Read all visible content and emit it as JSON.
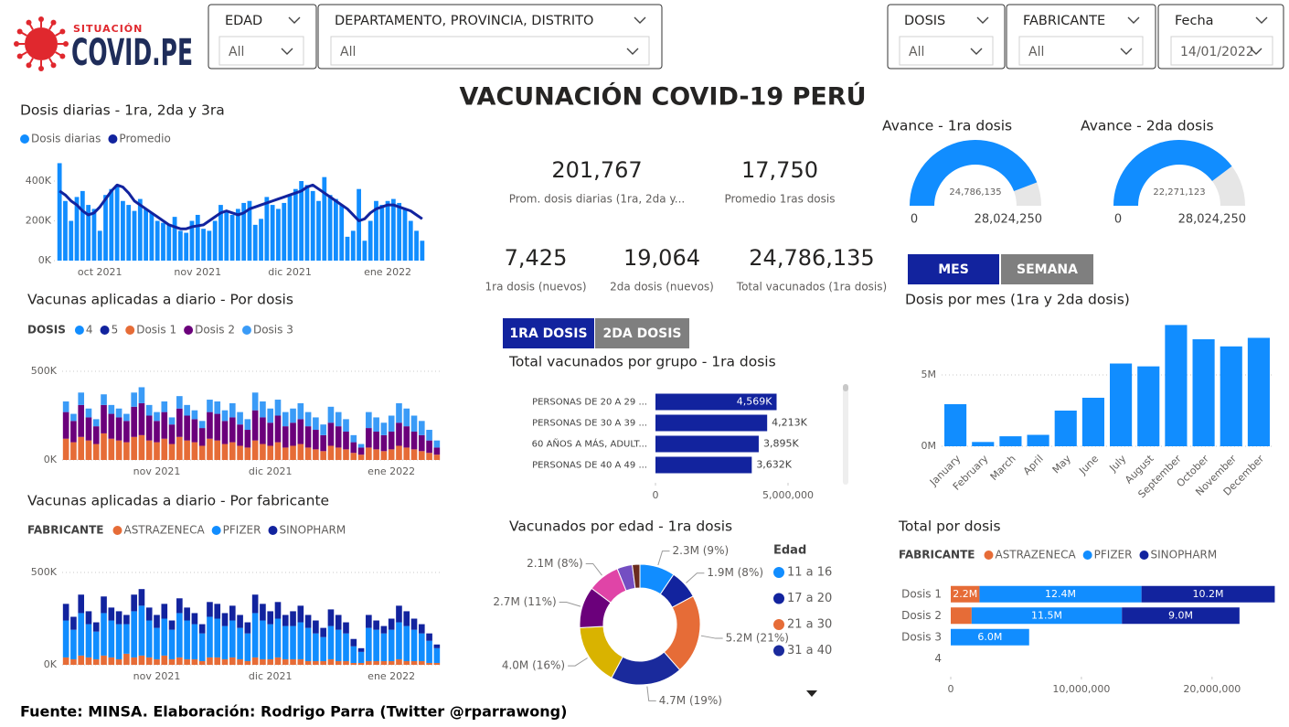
{
  "header": {
    "logo_top": "SITUACIÓN",
    "logo_main": "COVID.PE",
    "title": "VACUNACIÓN COVID-19 PERÚ"
  },
  "filters": [
    {
      "label": "EDAD",
      "value": "All"
    },
    {
      "label": "DEPARTAMENTO, PROVINCIA, DISTRITO",
      "value": "All"
    },
    {
      "label": "DOSIS",
      "value": "All"
    },
    {
      "label": "FABRICANTE",
      "value": "All"
    },
    {
      "label": "Fecha",
      "value": "14/01/2022"
    }
  ],
  "kpis": [
    {
      "value": "201,767",
      "label": "Prom. dosis diarias (1ra, 2da y..."
    },
    {
      "value": "17,750",
      "label": "Promedio 1ras dosis"
    },
    {
      "value": "7,425",
      "label": "1ra dosis (nuevos)"
    },
    {
      "value": "19,064",
      "label": "2da dosis (nuevos)"
    },
    {
      "value": "24,786,135",
      "label": "Total vacunados (1ra dosis)"
    }
  ],
  "toggles": {
    "period": [
      "MES",
      "SEMANA"
    ],
    "dose": [
      "1RA DOSIS",
      "2DA DOSIS"
    ]
  },
  "chart_data": [
    {
      "type": "combo",
      "title": "Dosis diarias - 1ra, 2da y 3ra",
      "categories": [
        null,
        null,
        null,
        null,
        null,
        null,
        null,
        "oct 2021",
        null,
        null,
        null,
        null,
        null,
        null,
        null,
        null,
        null,
        null,
        null,
        null,
        null,
        null,
        null,
        null,
        "nov 2021",
        null,
        null,
        null,
        null,
        null,
        null,
        null,
        null,
        null,
        null,
        null,
        null,
        null,
        null,
        null,
        "dic 2021",
        null,
        null,
        null,
        null,
        null,
        null,
        null,
        null,
        null,
        null,
        null,
        null,
        null,
        null,
        null,
        null,
        "ene 2022",
        null,
        null,
        null,
        null,
        null,
        null
      ],
      "series": [
        {
          "name": "Dosis diarias",
          "type": "bar",
          "color": "#118dff",
          "values": [
            490,
            300,
            200,
            320,
            350,
            280,
            260,
            150,
            330,
            360,
            380,
            300,
            280,
            250,
            310,
            260,
            240,
            200,
            190,
            180,
            220,
            150,
            140,
            200,
            230,
            160,
            150,
            200,
            280,
            250,
            230,
            260,
            290,
            300,
            180,
            210,
            320,
            280,
            260,
            290,
            330,
            360,
            400,
            380,
            350,
            300,
            420,
            330,
            310,
            280,
            120,
            150,
            360,
            100,
            200,
            300,
            280,
            300,
            310,
            290,
            260,
            200,
            150,
            100
          ]
        },
        {
          "name": "Promedio",
          "type": "line",
          "color": "#12239e",
          "values": [
            350,
            330,
            300,
            280,
            250,
            230,
            240,
            270,
            310,
            350,
            380,
            370,
            340,
            300,
            280,
            260,
            240,
            220,
            200,
            180,
            170,
            160,
            160,
            170,
            175,
            180,
            200,
            220,
            240,
            250,
            240,
            230,
            240,
            260,
            270,
            280,
            290,
            300,
            310,
            320,
            330,
            340,
            350,
            370,
            380,
            360,
            340,
            320,
            300,
            280,
            260,
            230,
            200,
            210,
            240,
            260,
            270,
            280,
            280,
            270,
            260,
            250,
            230,
            210
          ]
        }
      ],
      "ylim": [
        0,
        500
      ],
      "yticks": [
        {
          "value": 0,
          "label": "0K"
        },
        {
          "value": 200,
          "label": "200K"
        },
        {
          "value": 400,
          "label": "400K"
        }
      ],
      "grid": false
    },
    {
      "type": "stacked_bar",
      "title": "Vacunas aplicadas a diario - Por dosis",
      "legend_title": "DOSIS",
      "categories": [
        null,
        null,
        null,
        null,
        null,
        null,
        null,
        null,
        null,
        null,
        null,
        null,
        "nov 2021",
        null,
        null,
        null,
        null,
        null,
        null,
        null,
        null,
        null,
        null,
        null,
        null,
        null,
        null,
        "dic 2021",
        null,
        null,
        null,
        null,
        null,
        null,
        null,
        null,
        null,
        null,
        null,
        null,
        null,
        null,
        null,
        "ene 2022",
        null,
        null,
        null,
        null,
        null,
        null
      ],
      "series": [
        {
          "name": "4",
          "color": "#118dff",
          "values": [
            0,
            0,
            0,
            0,
            0,
            0,
            0,
            0,
            0,
            0,
            0,
            0,
            0,
            0,
            0,
            0,
            0,
            0,
            0,
            0,
            0,
            0,
            0,
            0,
            0,
            0,
            0,
            0,
            0,
            0,
            0,
            0,
            0,
            0,
            0,
            0,
            0,
            0,
            0,
            0,
            0,
            0,
            0,
            0,
            0,
            0,
            0,
            0,
            0,
            0
          ]
        },
        {
          "name": "5",
          "color": "#12239e",
          "values": [
            0,
            0,
            0,
            0,
            0,
            0,
            0,
            0,
            0,
            0,
            0,
            0,
            0,
            0,
            0,
            0,
            0,
            0,
            0,
            0,
            0,
            0,
            0,
            0,
            0,
            0,
            0,
            0,
            0,
            0,
            0,
            0,
            0,
            0,
            0,
            0,
            0,
            0,
            0,
            0,
            0,
            0,
            0,
            0,
            0,
            0,
            0,
            0,
            0,
            0
          ]
        },
        {
          "name": "Dosis 1",
          "color": "#e66c37",
          "values": [
            120,
            100,
            130,
            110,
            90,
            150,
            120,
            110,
            100,
            130,
            140,
            110,
            100,
            120,
            90,
            130,
            110,
            100,
            80,
            120,
            110,
            90,
            100,
            80,
            70,
            110,
            90,
            80,
            100,
            70,
            80,
            90,
            70,
            60,
            50,
            80,
            70,
            60,
            40,
            30,
            70,
            60,
            50,
            60,
            80,
            70,
            60,
            50,
            40,
            30
          ]
        },
        {
          "name": "Dosis 2",
          "color": "#6b007b",
          "values": [
            150,
            120,
            180,
            130,
            100,
            160,
            140,
            130,
            120,
            170,
            180,
            140,
            120,
            150,
            110,
            160,
            140,
            130,
            100,
            150,
            150,
            130,
            140,
            120,
            100,
            170,
            150,
            130,
            150,
            120,
            130,
            140,
            120,
            110,
            90,
            130,
            120,
            100,
            60,
            40,
            110,
            100,
            90,
            100,
            130,
            120,
            100,
            90,
            70,
            40
          ]
        },
        {
          "name": "Dosis 3",
          "color": "#3a9bf7",
          "values": [
            60,
            40,
            70,
            50,
            40,
            60,
            50,
            50,
            40,
            80,
            90,
            60,
            50,
            60,
            40,
            70,
            60,
            50,
            40,
            70,
            70,
            60,
            80,
            70,
            60,
            100,
            90,
            80,
            90,
            80,
            80,
            90,
            80,
            70,
            60,
            90,
            80,
            70,
            40,
            20,
            90,
            80,
            70,
            90,
            110,
            100,
            90,
            80,
            60,
            40
          ]
        }
      ],
      "ylim": [
        0,
        500
      ],
      "yticks": [
        {
          "value": 0,
          "label": "0K"
        },
        {
          "value": 500,
          "label": "500K"
        }
      ],
      "grid": true
    },
    {
      "type": "stacked_bar",
      "title": "Vacunas aplicadas a diario - Por fabricante",
      "legend_title": "FABRICANTE",
      "categories": [
        null,
        null,
        null,
        null,
        null,
        null,
        null,
        null,
        null,
        null,
        null,
        null,
        "nov 2021",
        null,
        null,
        null,
        null,
        null,
        null,
        null,
        null,
        null,
        null,
        null,
        null,
        null,
        null,
        "dic 2021",
        null,
        null,
        null,
        null,
        null,
        null,
        null,
        null,
        null,
        null,
        null,
        null,
        null,
        null,
        null,
        "ene 2022",
        null,
        null,
        null,
        null,
        null,
        null
      ],
      "series": [
        {
          "name": "ASTRAZENECA",
          "color": "#e66c37",
          "values": [
            40,
            30,
            50,
            40,
            30,
            50,
            40,
            30,
            60,
            40,
            50,
            40,
            30,
            50,
            30,
            40,
            30,
            30,
            20,
            40,
            40,
            30,
            40,
            30,
            20,
            40,
            30,
            30,
            40,
            30,
            30,
            30,
            20,
            20,
            20,
            30,
            20,
            20,
            10,
            10,
            20,
            20,
            20,
            20,
            30,
            20,
            20,
            20,
            10,
            10
          ]
        },
        {
          "name": "PFIZER",
          "color": "#118dff",
          "values": [
            200,
            160,
            230,
            180,
            150,
            230,
            200,
            190,
            160,
            250,
            270,
            200,
            170,
            200,
            160,
            240,
            210,
            190,
            150,
            220,
            210,
            180,
            200,
            170,
            150,
            240,
            210,
            190,
            210,
            180,
            180,
            200,
            180,
            150,
            130,
            180,
            170,
            150,
            90,
            60,
            180,
            170,
            150,
            170,
            200,
            190,
            170,
            150,
            120,
            80
          ]
        },
        {
          "name": "SINOPHARM",
          "color": "#12239e",
          "values": [
            90,
            70,
            100,
            70,
            50,
            90,
            70,
            70,
            50,
            90,
            90,
            70,
            70,
            80,
            50,
            80,
            70,
            60,
            50,
            80,
            80,
            70,
            80,
            70,
            60,
            100,
            90,
            70,
            90,
            60,
            80,
            90,
            70,
            70,
            50,
            90,
            80,
            60,
            40,
            20,
            70,
            50,
            40,
            60,
            90,
            80,
            60,
            50,
            40,
            20
          ]
        }
      ],
      "ylim": [
        0,
        500
      ],
      "yticks": [
        {
          "value": 0,
          "label": "0K"
        },
        {
          "value": 500,
          "label": "500K"
        }
      ],
      "grid": true
    },
    {
      "type": "gauge",
      "title": "Avance - 1ra dosis",
      "value": 24786135,
      "value_label": "24,786,135",
      "min": 0,
      "max": {
        "value": 28024250,
        "label": "28,024,250"
      },
      "color": "#118dff"
    },
    {
      "type": "gauge",
      "title": "Avance - 2da dosis",
      "value": 22271123,
      "value_label": "22,271,123",
      "min": 0,
      "max": {
        "value": 28024250,
        "label": "28,024,250"
      },
      "color": "#118dff"
    },
    {
      "type": "bar",
      "orientation": "horizontal",
      "title": "Total vacunados por grupo - 1ra dosis",
      "categories": [
        "PERSONAS DE 20 A 29 ...",
        "PERSONAS DE 30 A 39 ...",
        "60 AÑOS A MÁS, ADULT...",
        "PERSONAS DE 40 A 49 ..."
      ],
      "values": [
        4569000,
        4213000,
        3895000,
        3632000
      ],
      "value_labels": [
        "4,569K",
        "4,213K",
        "3,895K",
        "3,632K"
      ],
      "color": "#12239e",
      "xlim": [
        0,
        5000000
      ],
      "xticks": [
        0,
        {
          "value": 5000000,
          "label": "5,000,000"
        }
      ]
    },
    {
      "type": "donut",
      "title": "Vacunados por edad - 1ra dosis",
      "legend_title": "Edad",
      "categories": [
        "11 a 16",
        "17 a 20",
        "21 a 30",
        "31 a 40",
        null,
        null,
        null,
        null,
        null
      ],
      "values": [
        2.3,
        1.9,
        5.2,
        4.7,
        4.0,
        2.7,
        2.1,
        1.0,
        0.5
      ],
      "value_labels": [
        "2.3M (9%)",
        "1.9M (8%)",
        "5.2M (21%)",
        "4.7M (19%)",
        "4.0M (16%)",
        "2.7M (11%)",
        "2.1M (8%)",
        null,
        null
      ],
      "colors": [
        "#118dff",
        "#12239e",
        "#e66c37",
        "#1a2a9c",
        "#d9b300",
        "#6b007b",
        "#e044a7",
        "#744ec2",
        "#6b2c1f"
      ]
    },
    {
      "type": "bar",
      "title": "Dosis por mes (1ra y 2da dosis)",
      "categories": [
        "January",
        "February",
        "March",
        "April",
        "May",
        "June",
        "July",
        "August",
        "September",
        "October",
        "November",
        "December"
      ],
      "values": [
        2.95,
        0.3,
        0.7,
        0.8,
        2.5,
        3.4,
        5.8,
        5.6,
        8.5,
        7.5,
        7.0,
        7.6
      ],
      "color": "#118dff",
      "ylim": [
        0,
        9
      ],
      "yticks": [
        {
          "value": 0,
          "label": "0M"
        },
        {
          "value": 5,
          "label": "5M"
        }
      ],
      "grid": true
    },
    {
      "type": "stacked_bar",
      "orientation": "horizontal",
      "title": "Total por dosis",
      "legend_title": "FABRICANTE",
      "categories": [
        "Dosis 1",
        "Dosis 2",
        "Dosis 3",
        "4"
      ],
      "series": [
        {
          "name": "ASTRAZENECA",
          "color": "#e66c37",
          "values": [
            2200000,
            1600000,
            null,
            null
          ],
          "value_labels": [
            "2.2M",
            null,
            null,
            null
          ]
        },
        {
          "name": "PFIZER",
          "color": "#118dff",
          "values": [
            12400000,
            11500000,
            6000000,
            null
          ],
          "value_labels": [
            "12.4M",
            "11.5M",
            "6.0M",
            null
          ]
        },
        {
          "name": "SINOPHARM",
          "color": "#12239e",
          "values": [
            10200000,
            9000000,
            null,
            null
          ],
          "value_labels": [
            "10.2M",
            "9.0M",
            null,
            null
          ]
        }
      ],
      "xlim": [
        0,
        24000000
      ],
      "xticks": [
        0,
        {
          "value": 10000000,
          "label": "10,000,000"
        },
        {
          "value": 20000000,
          "label": "20,000,000"
        }
      ]
    }
  ],
  "footer": "Fuente: MINSA. Elaboración: Rodrigo Parra (Twitter @rparrawong)"
}
